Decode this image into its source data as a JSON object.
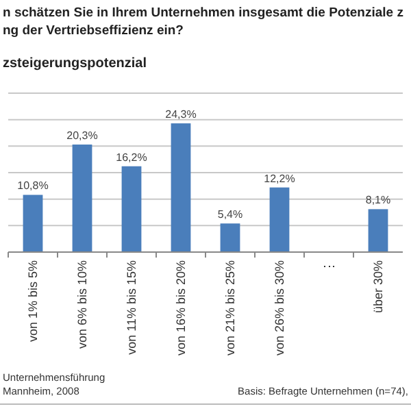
{
  "chart_data": {
    "type": "bar",
    "title": "n schätzen Sie in Ihrem Unternehmen insgesamt die Potenziale z\nng der Vertriebseffizienz ein?",
    "subtitle": "zsteigerungspotenzial",
    "categories": [
      "von 1% bis 5%",
      "von 6% bis 10%",
      "von 11% bis 15%",
      "von 16% bis 20%",
      "von 21% bis 25%",
      "von 26% bis 30%",
      "⋮",
      "über 30%"
    ],
    "values": [
      10.8,
      20.3,
      16.2,
      24.3,
      5.4,
      12.2,
      null,
      8.1
    ],
    "value_labels": [
      "10,8%",
      "20,3%",
      "16,2%",
      "24,3%",
      "5,4%",
      "12,2%",
      null,
      "8,1%"
    ],
    "color": "#4a7ebb",
    "ylim": [
      0,
      30
    ],
    "yticks": [
      {
        "value": 0,
        "label": null
      },
      {
        "value": 5,
        "label": null
      },
      {
        "value": 10,
        "label": null
      },
      {
        "value": 15,
        "label": null
      },
      {
        "value": 20,
        "label": null
      },
      {
        "value": 25,
        "label": null
      },
      {
        "value": 30,
        "label": null
      }
    ],
    "grid": "y",
    "tick_labels": "x",
    "annotations": [
      "Unternehmensführung\nMannheim, 2008",
      "Basis: Befragte Unternehmen (n=74),"
    ]
  }
}
